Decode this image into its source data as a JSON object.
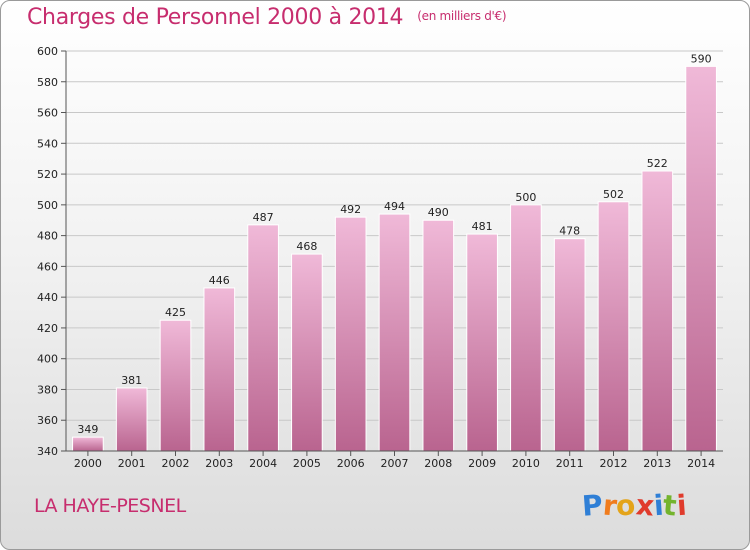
{
  "header": {
    "title": "Charges de Personnel 2000 à 2014",
    "subtitle": "(en milliers d'€)"
  },
  "footer": {
    "commune": "LA HAYE-PESNEL",
    "logo_letters": [
      "P",
      "r",
      "o",
      "x",
      "i",
      "t",
      "i"
    ],
    "logo_colors": [
      "#2f7fd6",
      "#f07c1d",
      "#e4a41a",
      "#e03b2c",
      "#2f7fd6",
      "#74b42d",
      "#e03b2c"
    ]
  },
  "colors": {
    "bar_light": "#f0b9d8",
    "bar_dark": "#b9648f",
    "accent": "#c72d6e"
  },
  "chart_data": {
    "type": "bar",
    "title": "Charges de Personnel 2000 à 2014",
    "subtitle": "(en milliers d'€)",
    "categories": [
      "2000",
      "2001",
      "2002",
      "2003",
      "2004",
      "2005",
      "2006",
      "2007",
      "2008",
      "2009",
      "2010",
      "2011",
      "2012",
      "2013",
      "2014"
    ],
    "values": [
      349,
      381,
      425,
      446,
      487,
      468,
      492,
      494,
      490,
      481,
      500,
      478,
      502,
      522,
      590
    ],
    "ylim": [
      340,
      600
    ],
    "yticks": [
      340,
      360,
      380,
      400,
      420,
      440,
      460,
      480,
      500,
      520,
      540,
      560,
      580,
      600
    ],
    "grid": true,
    "xlabel": "",
    "ylabel": ""
  }
}
